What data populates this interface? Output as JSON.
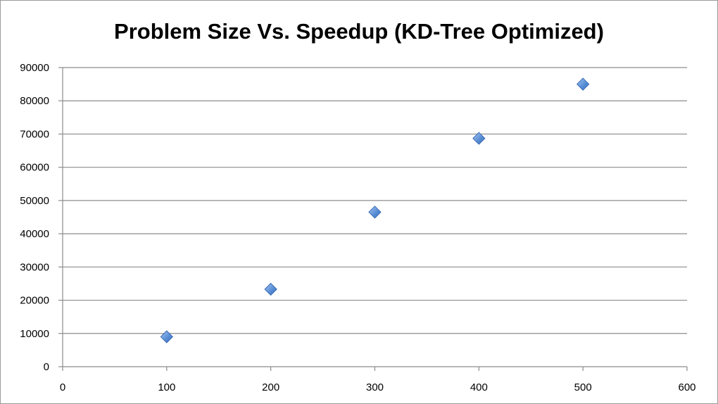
{
  "chart_data": {
    "type": "scatter",
    "title": "Problem Size Vs. Speedup (KD-Tree Optimized)",
    "xlabel": "",
    "ylabel": "",
    "xlim": [
      0,
      600
    ],
    "ylim": [
      0,
      90000
    ],
    "x_ticks": [
      0,
      100,
      200,
      300,
      400,
      500,
      600
    ],
    "y_ticks": [
      0,
      10000,
      20000,
      30000,
      40000,
      50000,
      60000,
      70000,
      80000,
      90000
    ],
    "grid": "horizontal",
    "legend": "none",
    "marker": "diamond",
    "marker_color": "#5a8fd6",
    "series": [
      {
        "x": [
          100,
          200,
          300,
          400,
          500
        ],
        "y": [
          9000,
          23300,
          46500,
          68700,
          85000
        ]
      }
    ]
  }
}
